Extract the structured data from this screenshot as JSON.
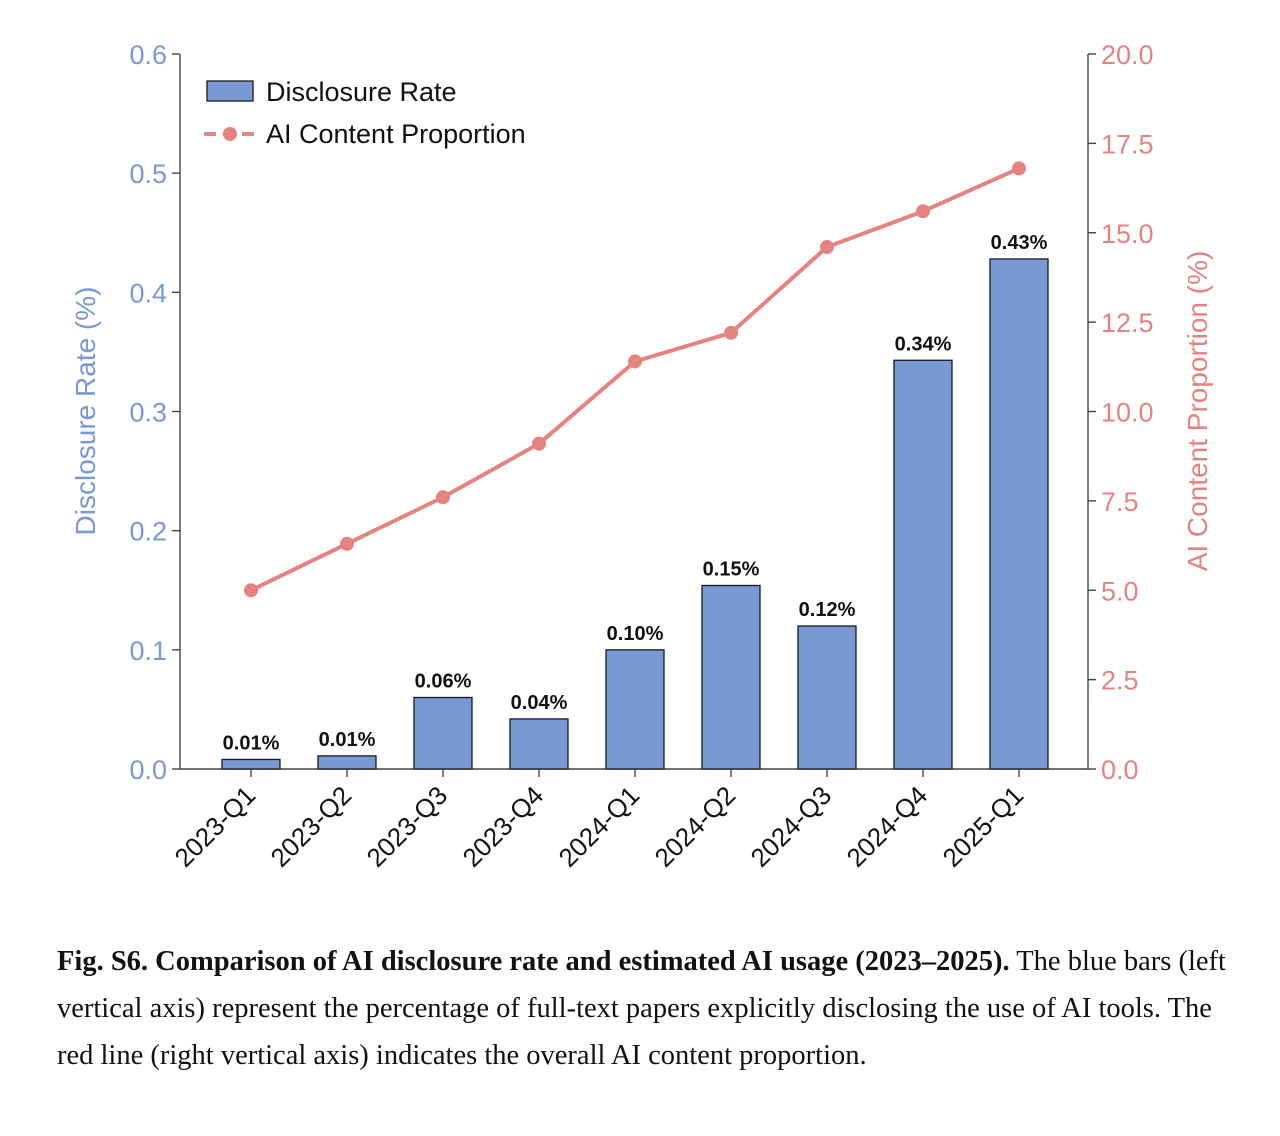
{
  "chart_data": {
    "type": "bar",
    "categories": [
      "2023-Q1",
      "2023-Q2",
      "2023-Q3",
      "2023-Q4",
      "2024-Q1",
      "2024-Q2",
      "2024-Q3",
      "2024-Q4",
      "2025-Q1"
    ],
    "series": [
      {
        "name": "Disclosure Rate",
        "type": "bar",
        "axis": "left",
        "values": [
          0.008,
          0.011,
          0.06,
          0.042,
          0.1,
          0.154,
          0.12,
          0.343,
          0.428
        ],
        "labels": [
          "0.01%",
          "0.01%",
          "0.06%",
          "0.04%",
          "0.10%",
          "0.15%",
          "0.12%",
          "0.34%",
          "0.43%"
        ],
        "color": "#7899d4"
      },
      {
        "name": "AI Content Proportion",
        "type": "line",
        "axis": "right",
        "values": [
          5.0,
          6.3,
          7.6,
          9.1,
          11.4,
          12.2,
          14.6,
          15.6,
          16.8
        ],
        "color": "#e48380"
      }
    ],
    "ylabel": "Disclosure Rate (%)",
    "y2label": "AI Content Proportion (%)",
    "ylim": [
      0,
      0.6
    ],
    "y2lim": [
      0,
      20
    ],
    "yticks": [
      "0.0",
      "0.1",
      "0.2",
      "0.3",
      "0.4",
      "0.5",
      "0.6"
    ],
    "y2ticks": [
      "0.0",
      "2.5",
      "5.0",
      "7.5",
      "10.0",
      "12.5",
      "15.0",
      "17.5",
      "20.0"
    ],
    "legend": {
      "position": "top-left",
      "entries": [
        "Disclosure Rate",
        "AI Content Proportion"
      ]
    },
    "grid": false,
    "left_axis_color": "#7899d4",
    "right_axis_color": "#e48380"
  },
  "caption": {
    "bold": "Fig. S6. Comparison of AI disclosure rate and estimated AI usage (2023–2025).",
    "text": " The blue bars (left vertical axis) represent the percentage of full-text papers explicitly disclosing the use of AI tools. The red line (right vertical axis) indicates the overall AI content proportion."
  }
}
